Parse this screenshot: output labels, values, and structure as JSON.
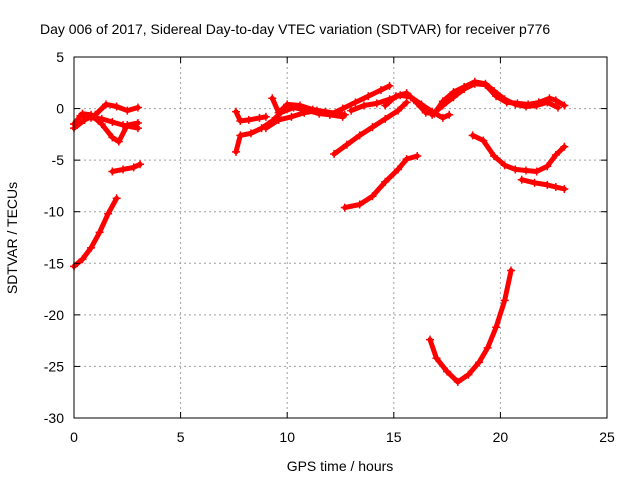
{
  "chart_data": {
    "type": "scatter",
    "title": "Day 006 of 2017, Sidereal Day-to-day VTEC variation (SDTVAR) for receiver p776",
    "xlabel": "GPS time / hours",
    "ylabel": "SDTVAR / TECUs",
    "xlim": [
      0,
      25
    ],
    "ylim": [
      -30,
      5
    ],
    "xticks": [
      0,
      5,
      10,
      15,
      20,
      25
    ],
    "yticks": [
      5,
      0,
      -5,
      -10,
      -15,
      -20,
      -25,
      -30
    ],
    "xtick_labels": [
      "0",
      "5",
      "10",
      "15",
      "20",
      "25"
    ],
    "ytick_labels": [
      "5",
      "0",
      "-5",
      "-10",
      "-15",
      "-20",
      "-25",
      "-30"
    ],
    "grid": true,
    "color": "#ff0000",
    "series": [
      {
        "values": [
          [
            0.0,
            -15.3
          ],
          [
            0.4,
            -14.6
          ],
          [
            0.8,
            -13.5
          ],
          [
            1.2,
            -12.0
          ],
          [
            1.6,
            -10.2
          ],
          [
            2.0,
            -8.7
          ]
        ]
      },
      {
        "values": [
          [
            0.0,
            -1.9
          ],
          [
            0.5,
            -1.1
          ],
          [
            1.0,
            -0.6
          ],
          [
            1.5,
            0.4
          ],
          [
            2.0,
            0.2
          ],
          [
            2.5,
            -0.2
          ],
          [
            3.0,
            0.1
          ]
        ]
      },
      {
        "values": [
          [
            0.0,
            -1.5
          ],
          [
            0.4,
            -0.5
          ],
          [
            0.8,
            -0.6
          ],
          [
            1.3,
            -1.5
          ],
          [
            1.8,
            -2.8
          ],
          [
            2.1,
            -3.2
          ],
          [
            2.5,
            -1.6
          ],
          [
            3.0,
            -1.4
          ]
        ]
      },
      {
        "values": [
          [
            0.3,
            -0.7
          ],
          [
            0.8,
            -0.9
          ],
          [
            1.3,
            -1.0
          ],
          [
            1.8,
            -1.3
          ],
          [
            2.3,
            -1.6
          ],
          [
            3.0,
            -1.9
          ]
        ]
      },
      {
        "values": [
          [
            1.8,
            -6.1
          ],
          [
            2.3,
            -5.9
          ],
          [
            2.8,
            -5.7
          ],
          [
            3.1,
            -5.4
          ]
        ]
      },
      {
        "values": [
          [
            7.6,
            -0.3
          ],
          [
            7.8,
            -1.2
          ],
          [
            8.2,
            -1.1
          ],
          [
            8.7,
            -0.9
          ],
          [
            9.0,
            -0.8
          ]
        ]
      },
      {
        "values": [
          [
            7.6,
            -4.2
          ],
          [
            7.8,
            -2.6
          ],
          [
            8.3,
            -2.4
          ],
          [
            8.8,
            -1.9
          ],
          [
            9.3,
            -1.2
          ],
          [
            9.7,
            -0.4
          ],
          [
            10.3,
            0.1
          ],
          [
            11.0,
            -0.2
          ],
          [
            11.5,
            -0.5
          ],
          [
            12.0,
            -0.6
          ],
          [
            12.6,
            -0.8
          ]
        ]
      },
      {
        "values": [
          [
            9.3,
            1.0
          ],
          [
            9.6,
            -0.4
          ],
          [
            10.0,
            0.4
          ],
          [
            10.6,
            0.3
          ],
          [
            11.2,
            -0.1
          ],
          [
            11.8,
            -0.3
          ],
          [
            12.4,
            -0.5
          ],
          [
            12.7,
            -0.6
          ]
        ]
      },
      {
        "values": [
          [
            9.0,
            -1.9
          ],
          [
            9.6,
            -1.1
          ],
          [
            10.2,
            -0.8
          ],
          [
            10.8,
            -0.4
          ],
          [
            11.4,
            -0.2
          ],
          [
            12.0,
            -0.6
          ],
          [
            12.6,
            0.0
          ],
          [
            13.2,
            0.6
          ],
          [
            13.8,
            1.2
          ],
          [
            14.4,
            1.8
          ],
          [
            14.8,
            2.2
          ]
        ]
      },
      {
        "values": [
          [
            12.2,
            -4.4
          ],
          [
            12.8,
            -3.5
          ],
          [
            13.4,
            -2.6
          ],
          [
            14.0,
            -1.8
          ],
          [
            14.6,
            -1.0
          ],
          [
            15.2,
            -0.2
          ],
          [
            15.6,
            0.6
          ]
        ]
      },
      {
        "values": [
          [
            13.0,
            -0.2
          ],
          [
            13.6,
            0.3
          ],
          [
            14.2,
            0.5
          ],
          [
            14.8,
            0.9
          ],
          [
            15.3,
            1.3
          ],
          [
            15.8,
            1.1
          ],
          [
            16.3,
            0.4
          ],
          [
            16.8,
            -0.3
          ],
          [
            17.3,
            -0.9
          ],
          [
            17.6,
            -0.6
          ]
        ]
      },
      {
        "values": [
          [
            14.6,
            0.3
          ],
          [
            15.1,
            1.2
          ],
          [
            15.6,
            1.5
          ],
          [
            16.1,
            0.5
          ],
          [
            16.5,
            -0.4
          ],
          [
            16.9,
            -0.5
          ],
          [
            17.3,
            0.7
          ],
          [
            17.8,
            1.6
          ],
          [
            18.3,
            2.1
          ],
          [
            18.8,
            2.6
          ],
          [
            19.3,
            2.4
          ],
          [
            19.7,
            1.7
          ],
          [
            20.2,
            0.9
          ],
          [
            20.7,
            0.4
          ],
          [
            21.2,
            0.2
          ],
          [
            21.7,
            0.3
          ],
          [
            22.2,
            0.6
          ],
          [
            22.7,
            0.1
          ]
        ]
      },
      {
        "values": [
          [
            16.8,
            -0.6
          ],
          [
            17.3,
            0.3
          ],
          [
            17.8,
            1.1
          ],
          [
            18.3,
            1.9
          ],
          [
            18.8,
            2.4
          ],
          [
            19.3,
            2.3
          ],
          [
            19.8,
            1.2
          ],
          [
            20.3,
            0.6
          ],
          [
            20.8,
            0.5
          ],
          [
            21.3,
            0.4
          ],
          [
            21.8,
            0.6
          ],
          [
            22.3,
            1.0
          ],
          [
            22.6,
            0.8
          ],
          [
            23.0,
            0.3
          ]
        ]
      },
      {
        "values": [
          [
            12.7,
            -9.6
          ],
          [
            13.4,
            -9.3
          ],
          [
            14.0,
            -8.5
          ],
          [
            14.6,
            -7.1
          ],
          [
            15.2,
            -5.9
          ],
          [
            15.6,
            -4.9
          ],
          [
            16.1,
            -4.6
          ]
        ]
      },
      {
        "values": [
          [
            18.7,
            -2.6
          ],
          [
            19.2,
            -3.1
          ],
          [
            19.7,
            -4.6
          ],
          [
            20.2,
            -5.5
          ],
          [
            20.7,
            -5.9
          ],
          [
            21.2,
            -6.0
          ],
          [
            21.7,
            -6.1
          ],
          [
            22.2,
            -5.6
          ],
          [
            22.6,
            -4.5
          ],
          [
            23.0,
            -3.7
          ]
        ]
      },
      {
        "values": [
          [
            21.0,
            -6.9
          ],
          [
            21.6,
            -7.2
          ],
          [
            22.2,
            -7.4
          ],
          [
            22.6,
            -7.6
          ],
          [
            23.0,
            -7.8
          ]
        ]
      },
      {
        "values": [
          [
            16.7,
            -22.4
          ],
          [
            17.0,
            -24.2
          ],
          [
            17.5,
            -25.5
          ],
          [
            18.0,
            -26.5
          ],
          [
            18.5,
            -25.8
          ],
          [
            19.0,
            -24.6
          ],
          [
            19.4,
            -23.2
          ],
          [
            19.8,
            -21.2
          ],
          [
            20.2,
            -18.6
          ],
          [
            20.5,
            -15.7
          ]
        ]
      }
    ]
  }
}
